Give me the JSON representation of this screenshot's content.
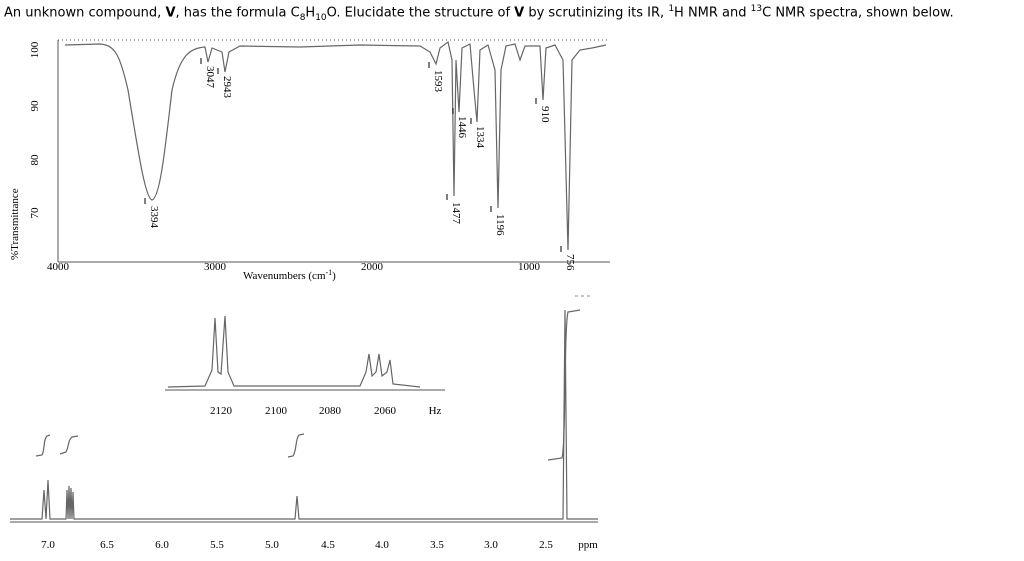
{
  "question": {
    "parts": [
      "An unknown compound, ",
      "V",
      ", has the formula C",
      "8",
      "H",
      "10",
      "O. Elucidate the structure of ",
      "V",
      " by scrutinizing its IR, ",
      "1",
      "H NMR and ",
      "13",
      "C NMR spectra, shown below."
    ]
  },
  "ir": {
    "y_label": "%Transmittance",
    "yticks": [
      100,
      90,
      80,
      70
    ],
    "xticks": [
      4000,
      3000,
      2000,
      1000
    ],
    "x_label": {
      "text": "Wavenumbers (cm",
      "sup": "-1",
      "end": ")"
    },
    "peaks": [
      3394,
      3047,
      2943,
      1593,
      1477,
      1446,
      1334,
      1196,
      910,
      756
    ]
  },
  "nmr": {
    "inset_ticks": [
      2120,
      2100,
      2080,
      2060
    ],
    "inset_unit": "Hz",
    "xticks": [
      "7.0",
      "6.5",
      "6.0",
      "5.5",
      "5.0",
      "4.5",
      "4.0",
      "3.5",
      "3.0",
      "2.5"
    ],
    "unit": "ppm"
  }
}
